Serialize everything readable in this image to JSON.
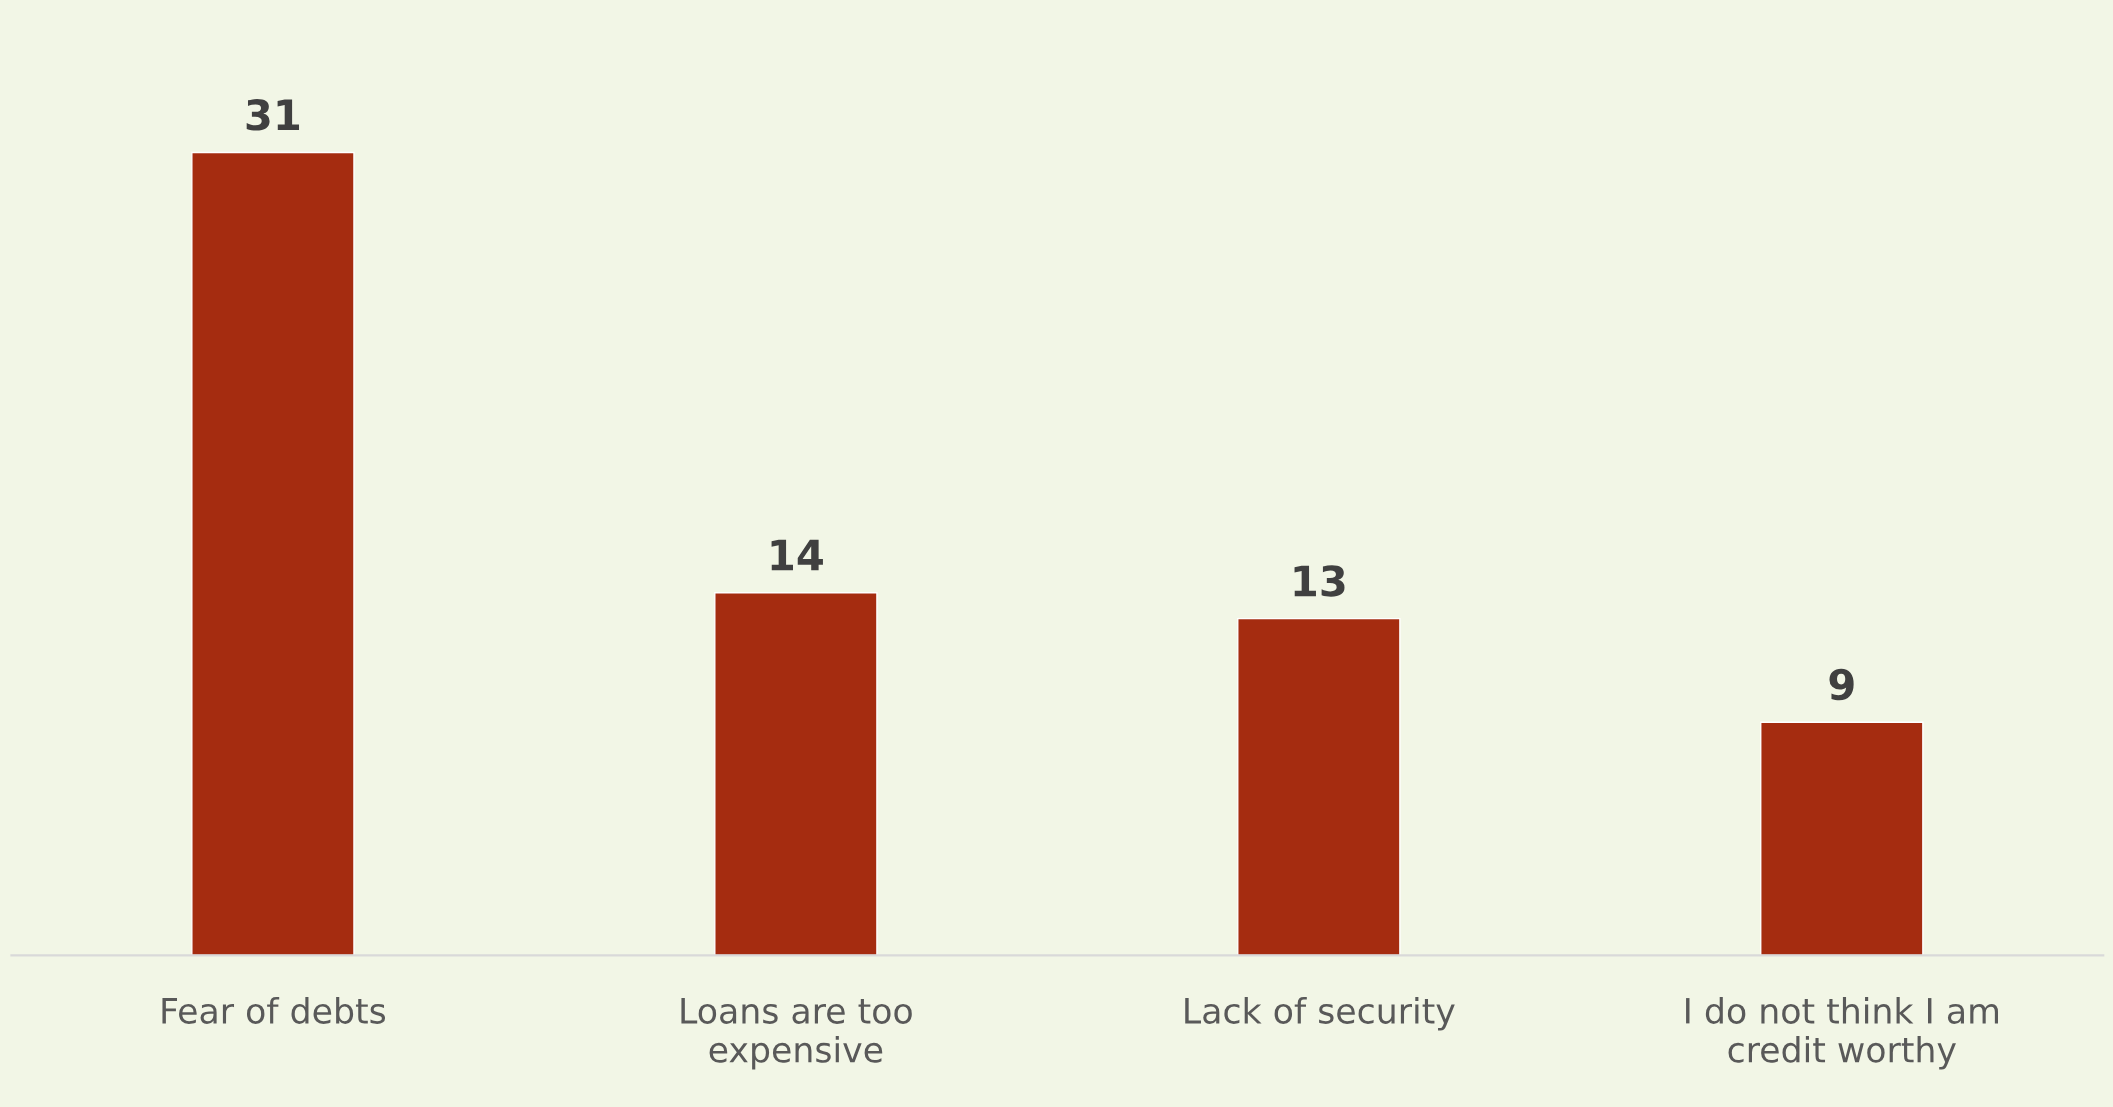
{
  "chart_data": {
    "type": "bar",
    "categories": [
      "Fear of debts",
      "Loans are too\nexpensive",
      "Lack of security",
      "I do not think I am\ncredit worthy"
    ],
    "values": [
      31,
      14,
      13,
      9
    ],
    "color": "#a52c10",
    "data_labels": true,
    "grid": false,
    "legend": false
  }
}
